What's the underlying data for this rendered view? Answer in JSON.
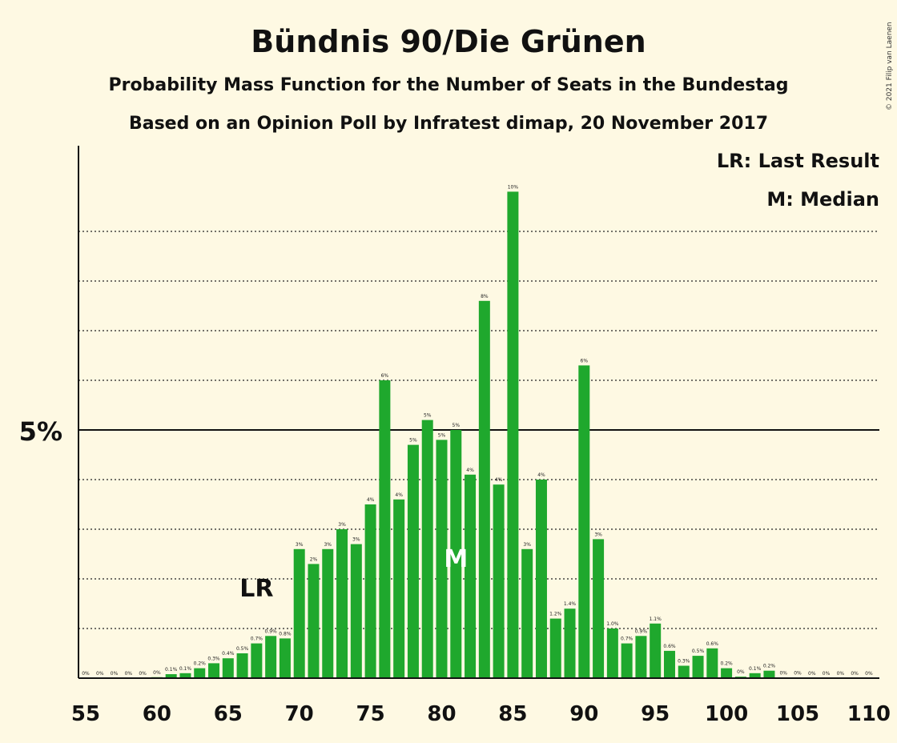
{
  "chart_data": {
    "type": "bar",
    "title": "Bündnis 90/Die Grünen",
    "subtitle": "Probability Mass Function for the Number of Seats in the Bundestag",
    "subtitle2": "Based on an Opinion Poll by Infratest dimap, 20 November 2017",
    "credit": "© 2021 Filip van Laenen",
    "legend": {
      "placement": "top-right",
      "entries": [
        "LR: Last Result",
        "M: Median"
      ]
    },
    "x": [
      55,
      56,
      57,
      58,
      59,
      60,
      61,
      62,
      63,
      64,
      65,
      66,
      67,
      68,
      69,
      70,
      71,
      72,
      73,
      74,
      75,
      76,
      77,
      78,
      79,
      80,
      81,
      82,
      83,
      84,
      85,
      86,
      87,
      88,
      89,
      90,
      91,
      92,
      93,
      94,
      95,
      96,
      97,
      98,
      99,
      100,
      101,
      102,
      103,
      104,
      105,
      106,
      107,
      108,
      109,
      110
    ],
    "values": [
      0,
      0,
      0,
      0,
      0,
      0.02,
      0.08,
      0.1,
      0.2,
      0.3,
      0.4,
      0.5,
      0.7,
      0.85,
      0.8,
      2.6,
      2.3,
      2.6,
      3.0,
      2.7,
      3.5,
      6.0,
      3.6,
      4.7,
      5.2,
      4.8,
      5.0,
      4.1,
      7.6,
      3.9,
      9.8,
      2.6,
      4.0,
      1.2,
      1.4,
      6.3,
      2.8,
      1.0,
      0.7,
      0.85,
      1.1,
      0.55,
      0.25,
      0.45,
      0.6,
      0.2,
      0.03,
      0.1,
      0.15,
      0.01,
      0.01,
      0,
      0,
      0,
      0,
      0
    ],
    "labels": [
      "0%",
      "0%",
      "0%",
      "0%",
      "0%",
      "0%",
      "0.1%",
      "0.1%",
      "0.2%",
      "0.3%",
      "0.4%",
      "0.5%",
      "0.7%",
      "0.9%",
      "0.8%",
      "3%",
      "2%",
      "3%",
      "3%",
      "3%",
      "4%",
      "6%",
      "4%",
      "5%",
      "5%",
      "5%",
      "5%",
      "4%",
      "8%",
      "4%",
      "10%",
      "3%",
      "4%",
      "1.2%",
      "1.4%",
      "6%",
      "3%",
      "1.0%",
      "0.7%",
      "0.9%",
      "1.1%",
      "0.6%",
      "0.3%",
      "0.5%",
      "0.6%",
      "0.2%",
      "0%",
      "0.1%",
      "0.2%",
      "0%",
      "0%",
      "0%",
      "0%",
      "0%",
      "0%",
      "0%"
    ],
    "xticks": [
      "55",
      "60",
      "65",
      "70",
      "75",
      "80",
      "85",
      "90",
      "95",
      "100",
      "105",
      "110"
    ],
    "yticks": [
      "5%"
    ],
    "ylim": [
      0,
      11
    ],
    "gridlines": [
      1,
      2,
      3,
      4,
      6,
      7,
      8,
      9
    ],
    "last_result": {
      "seat": 67,
      "label": "LR"
    },
    "median": {
      "seat": 81,
      "label": "M"
    },
    "colors": {
      "bar": "#1fa82d",
      "background": "#fef9e3",
      "text": "#111111"
    }
  }
}
